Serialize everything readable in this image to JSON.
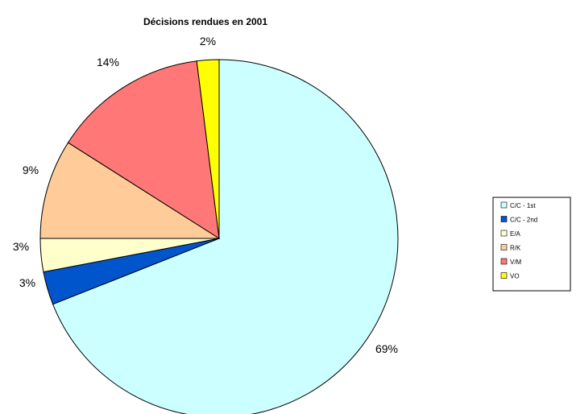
{
  "chart_data": {
    "type": "pie",
    "title": "Décisions rendues en 2001",
    "categories": [
      "C/C - 1st",
      "C/C - 2nd",
      "E/A",
      "R/K",
      "V/M",
      "VO"
    ],
    "values": [
      69,
      3,
      3,
      9,
      14,
      2
    ],
    "labels": [
      "69%",
      "3%",
      "3%",
      "9%",
      "14%",
      "2%"
    ],
    "colors": [
      "#ccffff",
      "#0055cc",
      "#ffffcc",
      "#ffcc99",
      "#ff7777",
      "#ffff00"
    ],
    "start_angle": "12 o'clock",
    "direction": "clockwise",
    "legend_position": "right"
  }
}
